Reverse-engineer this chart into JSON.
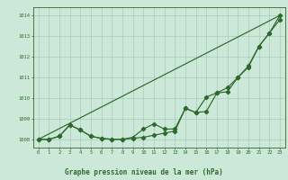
{
  "xlabel": "Graphe pression niveau de la mer (hPa)",
  "bg_color": "#cce8d8",
  "grid_color": "#aaccbb",
  "line_color": "#2d6a2d",
  "x_ticks": [
    0,
    1,
    2,
    3,
    4,
    5,
    6,
    7,
    8,
    9,
    10,
    11,
    12,
    13,
    14,
    15,
    16,
    17,
    18,
    19,
    20,
    21,
    22,
    23
  ],
  "ylim": [
    1007.6,
    1014.4
  ],
  "xlim": [
    -0.5,
    23.5
  ],
  "yticks": [
    1008,
    1009,
    1010,
    1011,
    1012,
    1013,
    1014
  ],
  "straight_line": [
    [
      0,
      1008.0
    ],
    [
      23,
      1014.0
    ]
  ],
  "series_smooth": [
    1008.0,
    1008.0,
    1008.15,
    1008.7,
    1008.45,
    1008.15,
    1008.05,
    1008.0,
    1008.0,
    1008.05,
    1008.1,
    1008.2,
    1008.3,
    1008.4,
    1009.5,
    1009.3,
    1009.35,
    1010.25,
    1010.3,
    1011.0,
    1011.5,
    1012.5,
    1013.15,
    1013.8
  ],
  "series_jagged": [
    1008.0,
    1008.0,
    1008.15,
    1008.7,
    1008.45,
    1008.15,
    1008.05,
    1008.0,
    1008.0,
    1008.1,
    1008.5,
    1008.75,
    1008.5,
    1008.5,
    1009.5,
    1009.3,
    1010.05,
    1010.25,
    1010.5,
    1011.0,
    1011.55,
    1012.5,
    1013.15,
    1014.0
  ]
}
